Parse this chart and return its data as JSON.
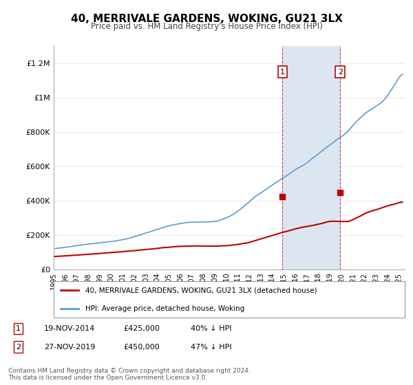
{
  "title": "40, MERRIVALE GARDENS, WOKING, GU21 3LX",
  "subtitle": "Price paid vs. HM Land Registry's House Price Index (HPI)",
  "ylabel_ticks": [
    "£0",
    "£200K",
    "£400K",
    "£600K",
    "£800K",
    "£1M",
    "£1.2M"
  ],
  "ytick_values": [
    0,
    200000,
    400000,
    600000,
    800000,
    1000000,
    1200000
  ],
  "ylim": [
    0,
    1300000
  ],
  "xlim_start": 1995.0,
  "xlim_end": 2025.5,
  "hpi_color": "#5b9bd5",
  "price_color": "#c00000",
  "marker1_date": 2014.88,
  "marker1_price": 425000,
  "marker2_date": 2019.9,
  "marker2_price": 450000,
  "annotation1": "1",
  "annotation2": "2",
  "legend_label1": "40, MERRIVALE GARDENS, WOKING, GU21 3LX (detached house)",
  "legend_label2": "HPI: Average price, detached house, Woking",
  "table_row1": [
    "1",
    "19-NOV-2014",
    "£425,000",
    "40% ↓ HPI"
  ],
  "table_row2": [
    "2",
    "27-NOV-2019",
    "£450,000",
    "47% ↓ HPI"
  ],
  "footnote": "Contains HM Land Registry data © Crown copyright and database right 2024.\nThis data is licensed under the Open Government Licence v3.0.",
  "background_color": "#ffffff",
  "plot_bg_color": "#ffffff",
  "shaded_region_color": "#dce6f1"
}
